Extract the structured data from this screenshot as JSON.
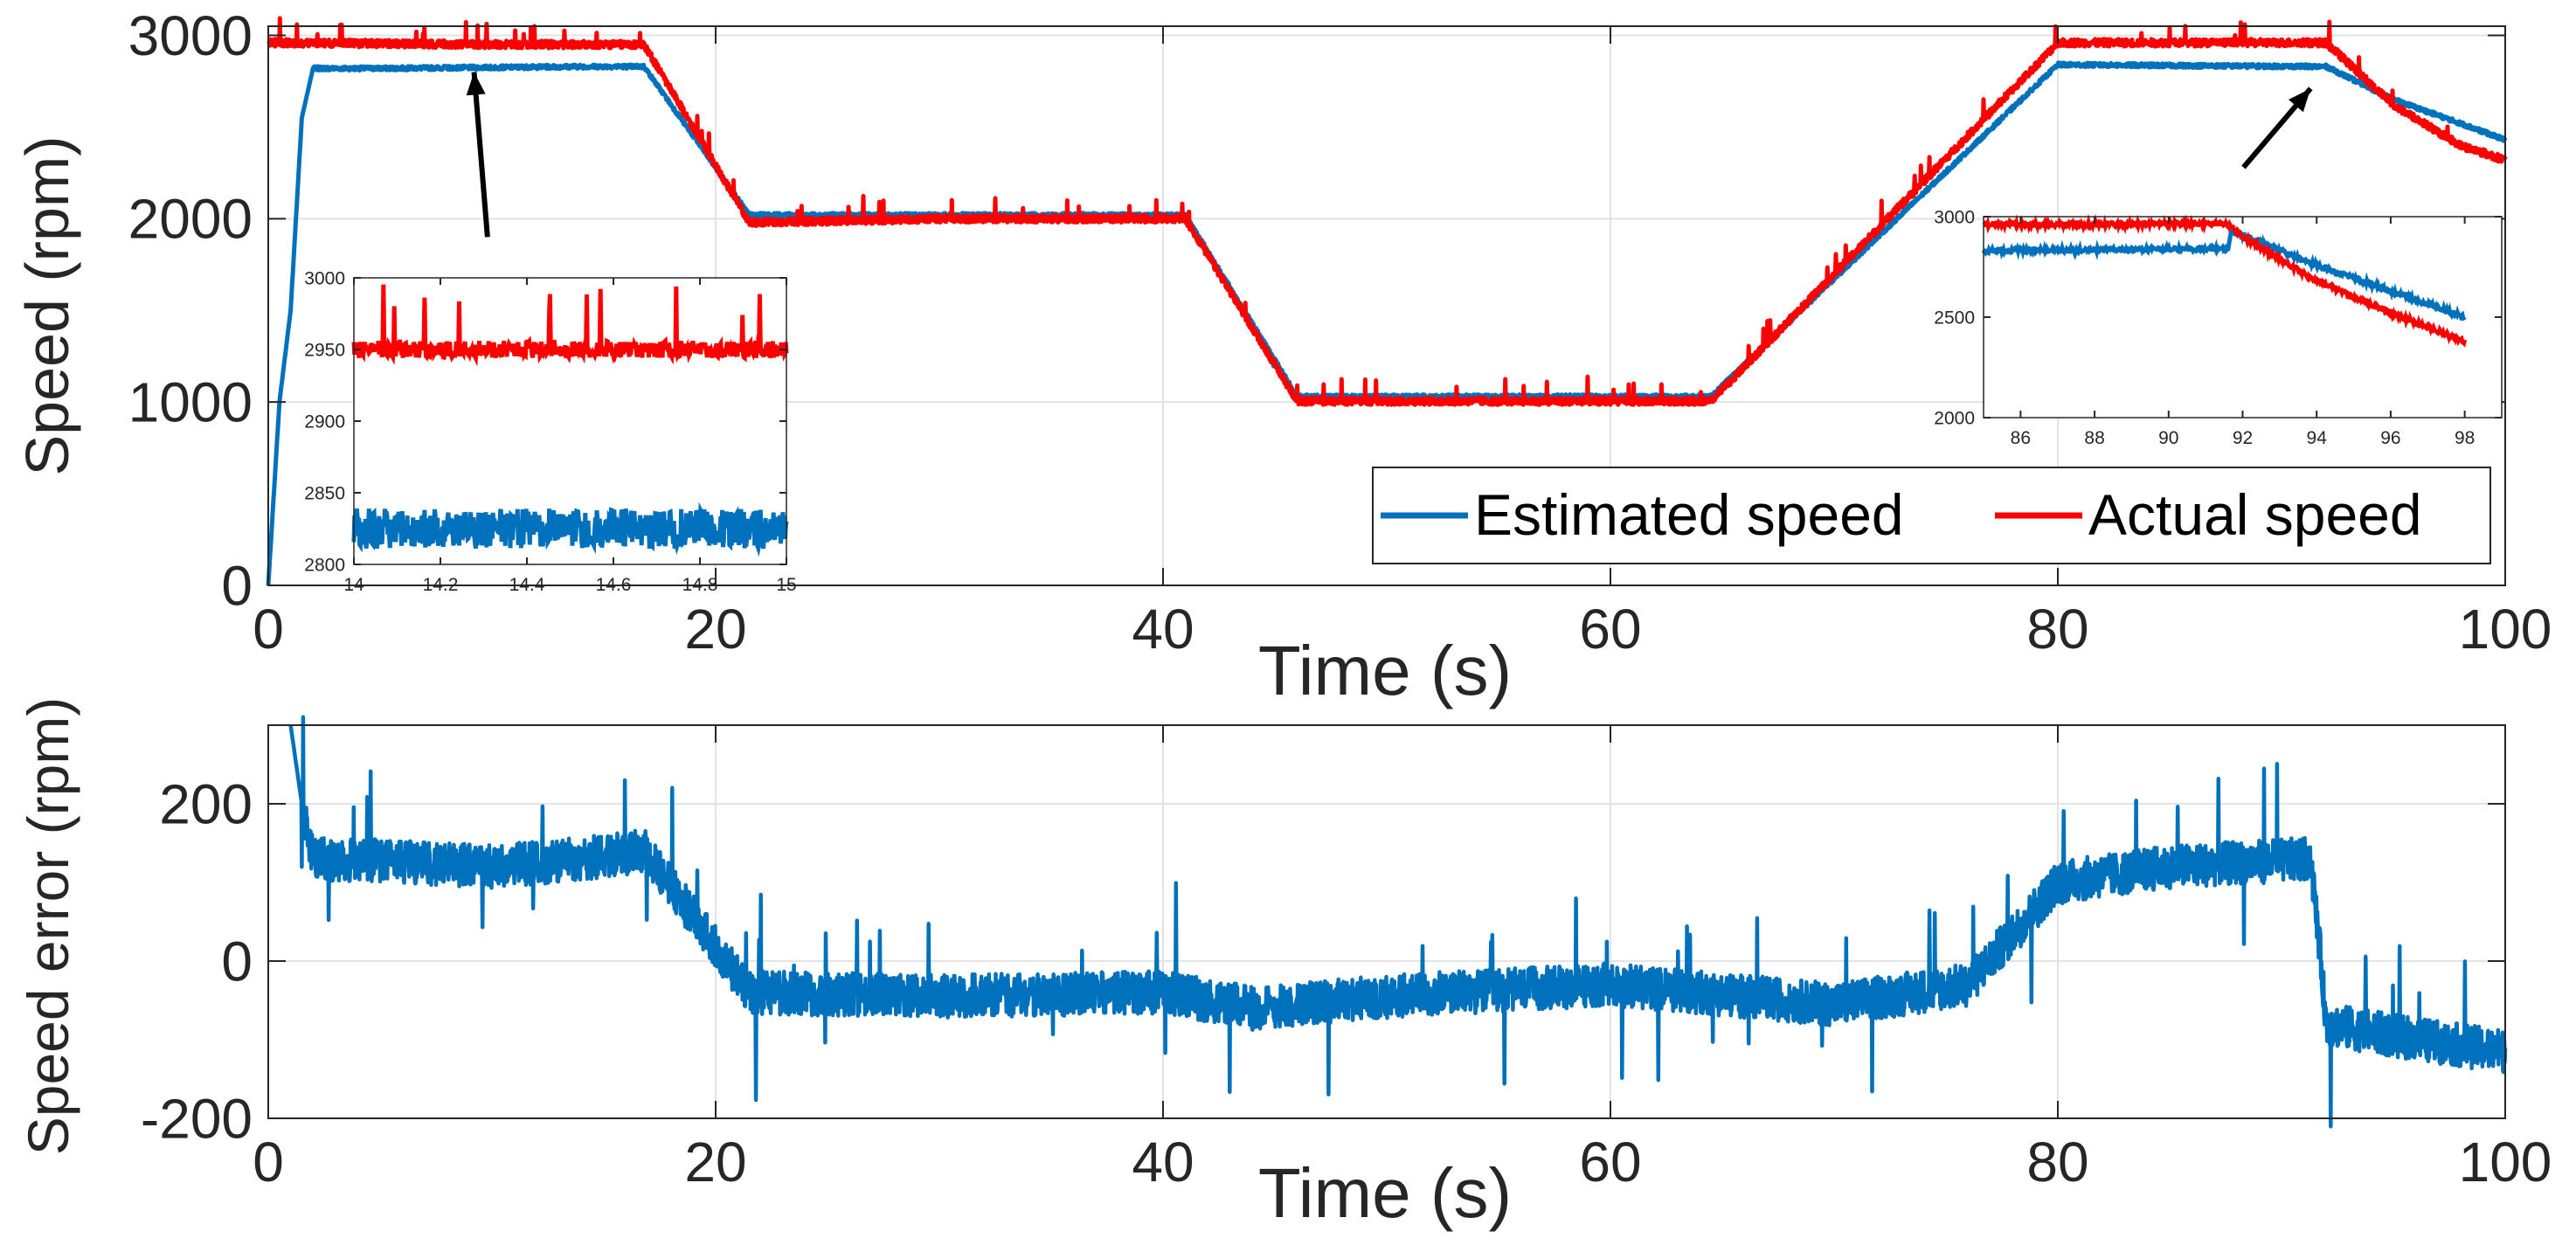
{
  "colors": {
    "estimated": "#0072BD",
    "actual": "#FF0000",
    "error": "#0072BD",
    "grid": "#E3E3E3",
    "axis": "#262626",
    "arrow": "#000000"
  },
  "chart_data": [
    {
      "id": "speed",
      "type": "line",
      "title": "",
      "xlabel": "Time (s)",
      "ylabel": "Speed (rpm)",
      "xlim": [
        0,
        100
      ],
      "ylim": [
        0,
        3050
      ],
      "xticks": [
        0,
        20,
        40,
        60,
        80,
        100
      ],
      "yticks": [
        0,
        1000,
        2000,
        3000
      ],
      "xtick_labels": [
        "0",
        "20",
        "40",
        "60",
        "80",
        "100"
      ],
      "ytick_labels": [
        "0",
        "1000",
        "2000",
        "3000"
      ],
      "grid": true,
      "legend_position": "bottom-right",
      "legend": [
        "Estimated speed",
        "Actual speed"
      ],
      "series": [
        {
          "name": "Estimated speed",
          "x": [
            0,
            0.5,
            1.0,
            1.5,
            2,
            5,
            10,
            14,
            16.8,
            21.5,
            30,
            40,
            41,
            46,
            55,
            64.5,
            80,
            91.5,
            92,
            95,
            98,
            100
          ],
          "y": [
            0,
            1000,
            1500,
            2550,
            2820,
            2820,
            2825,
            2830,
            2830,
            2020,
            2020,
            2020,
            2020,
            1030,
            1030,
            1030,
            2840,
            2830,
            2830,
            2650,
            2520,
            2430
          ]
        },
        {
          "name": "Actual speed",
          "x": [
            0,
            5,
            10,
            14,
            16.8,
            21.5,
            30,
            40,
            41,
            46,
            55,
            64.5,
            80,
            91.5,
            92,
            95,
            98,
            100
          ],
          "y": [
            2960,
            2955,
            2950,
            2950,
            2950,
            1980,
            2000,
            2000,
            2000,
            1005,
            1005,
            1005,
            2960,
            2960,
            2960,
            2620,
            2400,
            2320
          ]
        }
      ],
      "annotations": [
        {
          "type": "arrow",
          "from": [
            9.8,
            1900
          ],
          "to": [
            9.2,
            2800
          ]
        },
        {
          "type": "arrow",
          "from": [
            88.3,
            2280
          ],
          "to": [
            91.3,
            2710
          ]
        }
      ],
      "insets": [
        {
          "id": "inset-left",
          "xlim": [
            14,
            15
          ],
          "ylim": [
            2800,
            3000
          ],
          "xticks": [
            14,
            14.2,
            14.4,
            14.6,
            14.8,
            15
          ],
          "yticks": [
            2800,
            2850,
            2900,
            2950,
            3000
          ],
          "xtick_labels": [
            "14",
            "14.2",
            "14.4",
            "14.6",
            "14.8",
            "15"
          ],
          "ytick_labels": [
            "2800",
            "2850",
            "2900",
            "2950",
            "3000"
          ],
          "series": [
            {
              "name": "Estimated speed",
              "x": [
                14,
                15
              ],
              "y": [
                2825,
                2825
              ]
            },
            {
              "name": "Actual speed",
              "x": [
                14,
                15
              ],
              "y": [
                2950,
                2950
              ]
            }
          ]
        },
        {
          "id": "inset-right",
          "xlim": [
            85,
            99
          ],
          "ylim": [
            2000,
            3000
          ],
          "xticks": [
            86,
            88,
            90,
            92,
            94,
            96,
            98
          ],
          "yticks": [
            2000,
            2500,
            3000
          ],
          "xtick_labels": [
            "86",
            "88",
            "90",
            "92",
            "94",
            "96",
            "98"
          ],
          "ytick_labels": [
            "2000",
            "2500",
            "3000"
          ],
          "series": [
            {
              "name": "Estimated speed",
              "x": [
                85,
                91.6,
                91.7,
                94,
                96,
                98
              ],
              "y": [
                2830,
                2840,
                2930,
                2760,
                2630,
                2500
              ]
            },
            {
              "name": "Actual speed",
              "x": [
                85,
                91.6,
                92,
                94,
                96,
                98
              ],
              "y": [
                2960,
                2965,
                2900,
                2680,
                2520,
                2380
              ]
            }
          ]
        }
      ]
    },
    {
      "id": "error",
      "type": "line",
      "title": "",
      "xlabel": "Time (s)",
      "ylabel": "Speed error (rpm)",
      "xlim": [
        0,
        100
      ],
      "ylim": [
        -200,
        300
      ],
      "xticks": [
        0,
        20,
        40,
        60,
        80,
        100
      ],
      "yticks": [
        -200,
        0,
        200
      ],
      "xtick_labels": [
        "0",
        "20",
        "40",
        "60",
        "80",
        "100"
      ],
      "ytick_labels": [
        "-200",
        "0",
        "200"
      ],
      "grid": true,
      "series": [
        {
          "name": "Speed error",
          "x": [
            1.0,
            1.5,
            2,
            5,
            10,
            14,
            16.8,
            20,
            21.5,
            30,
            40,
            44,
            50,
            60,
            70,
            76,
            80,
            85,
            91.3,
            91.7,
            92,
            95,
            100
          ],
          "y": [
            300,
            200,
            130,
            128,
            120,
            130,
            140,
            20,
            -40,
            -45,
            -40,
            -60,
            -45,
            -30,
            -55,
            -30,
            100,
            120,
            130,
            20,
            -80,
            -95,
            -115
          ]
        }
      ]
    }
  ]
}
